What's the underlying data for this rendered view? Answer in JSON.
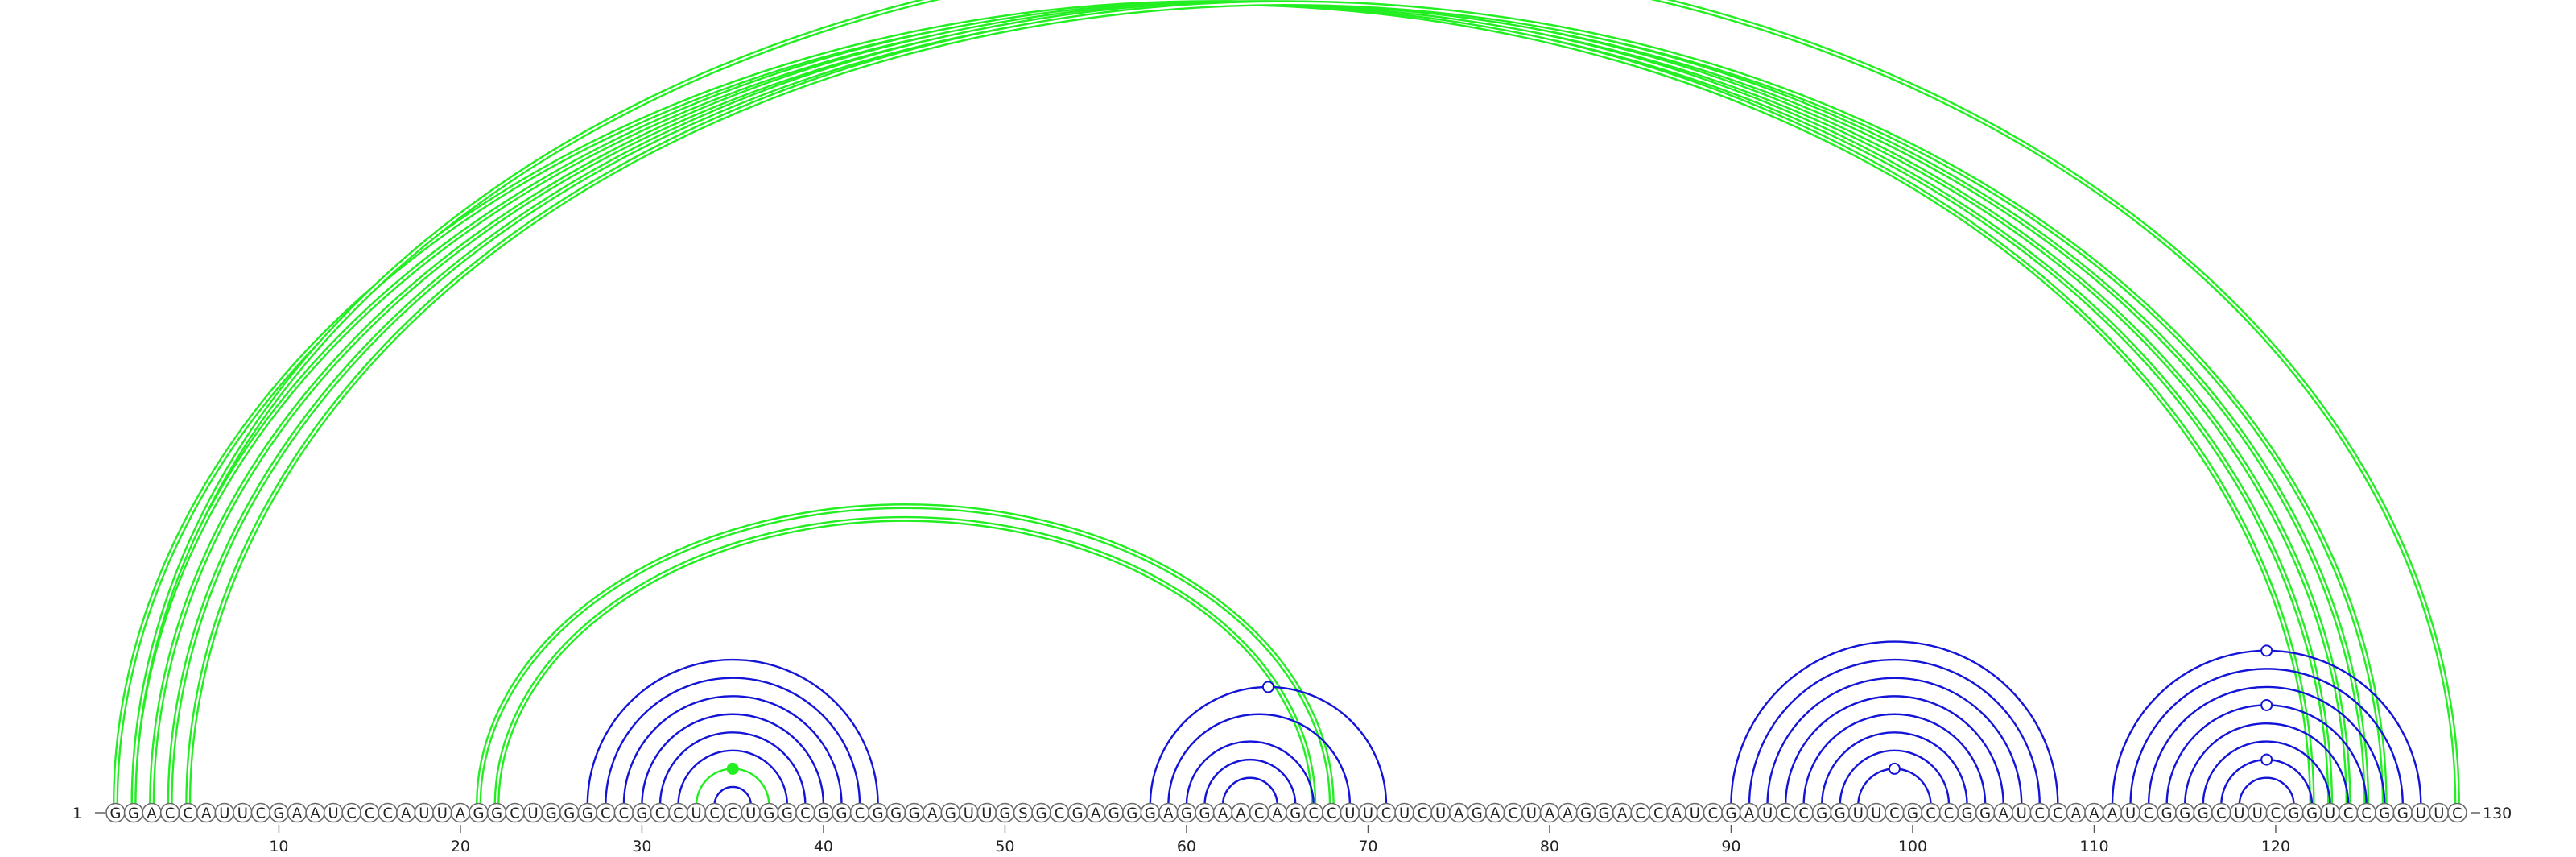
{
  "sequence": "GGACCAUUCGAAUCCCAUUAGGCUGGGCCGCCUCCUGGCGGCGGGAGUUGSGCGAGGGAGGAACAGCCUUCUCUAGACUAAGGACCAUCGAUCCGGUUCGCCGGAUCCAAAUCGGGCUUCGGUCCGGUUC",
  "start_label": "1",
  "end_label": "130",
  "ticks": [
    10,
    20,
    30,
    40,
    50,
    60,
    70,
    80,
    90,
    100,
    110,
    120
  ],
  "colors": {
    "green": "#22ee22",
    "blue": "#1414d8",
    "text": "#222222"
  },
  "arc_groups": [
    {
      "name": "long-range-green",
      "color": "green",
      "double": true,
      "pairs": [
        [
          1,
          122
        ],
        [
          2,
          123
        ],
        [
          3,
          124
        ],
        [
          4,
          125
        ],
        [
          5,
          126
        ]
      ]
    },
    {
      "name": "long-range-green-outer",
      "color": "green",
      "double": true,
      "pairs": [
        [
          2,
          130
        ]
      ]
    },
    {
      "name": "mid-range-green",
      "color": "green",
      "double": true,
      "pairs": [
        [
          21,
          68
        ],
        [
          22,
          67
        ]
      ]
    },
    {
      "name": "hairpin-green",
      "color": "green",
      "double": false,
      "pairs": [
        [
          33,
          37
        ]
      ]
    },
    {
      "name": "stem-blue-a",
      "color": "blue",
      "double": false,
      "pairs": [
        [
          27,
          43
        ],
        [
          28,
          42
        ],
        [
          29,
          41
        ],
        [
          30,
          40
        ],
        [
          31,
          39
        ],
        [
          32,
          38
        ],
        [
          34,
          36
        ]
      ]
    },
    {
      "name": "stem-blue-b",
      "color": "blue",
      "double": false,
      "pairs": [
        [
          58,
          71
        ],
        [
          59,
          69
        ],
        [
          60,
          67
        ],
        [
          61,
          66
        ],
        [
          62,
          65
        ]
      ]
    },
    {
      "name": "stem-blue-c",
      "color": "blue",
      "double": false,
      "pairs": [
        [
          90,
          108
        ],
        [
          91,
          107
        ],
        [
          92,
          106
        ],
        [
          93,
          105
        ],
        [
          94,
          104
        ],
        [
          95,
          103
        ],
        [
          96,
          102
        ],
        [
          97,
          101
        ]
      ]
    },
    {
      "name": "stem-blue-d",
      "color": "blue",
      "double": false,
      "pairs": [
        [
          111,
          128
        ],
        [
          112,
          127
        ],
        [
          113,
          126
        ],
        [
          114,
          125
        ],
        [
          115,
          124
        ],
        [
          116,
          123
        ],
        [
          117,
          122
        ],
        [
          118,
          121
        ]
      ]
    }
  ],
  "markers": [
    {
      "name": "marker-open-green-top",
      "color": "green",
      "filled": false,
      "i": 2,
      "j": 130
    },
    {
      "name": "marker-filled-green",
      "color": "green",
      "filled": true,
      "i": 33,
      "j": 37
    },
    {
      "name": "marker-open-blue-b",
      "color": "blue",
      "filled": false,
      "i": 58,
      "j": 71
    },
    {
      "name": "marker-open-blue-c",
      "color": "blue",
      "filled": false,
      "i": 97,
      "j": 101
    },
    {
      "name": "marker-open-blue-d1",
      "color": "blue",
      "filled": false,
      "i": 111,
      "j": 128
    },
    {
      "name": "marker-open-blue-d2",
      "color": "blue",
      "filled": false,
      "i": 114,
      "j": 125
    },
    {
      "name": "marker-open-blue-d3",
      "color": "blue",
      "filled": false,
      "i": 117,
      "j": 122
    }
  ]
}
